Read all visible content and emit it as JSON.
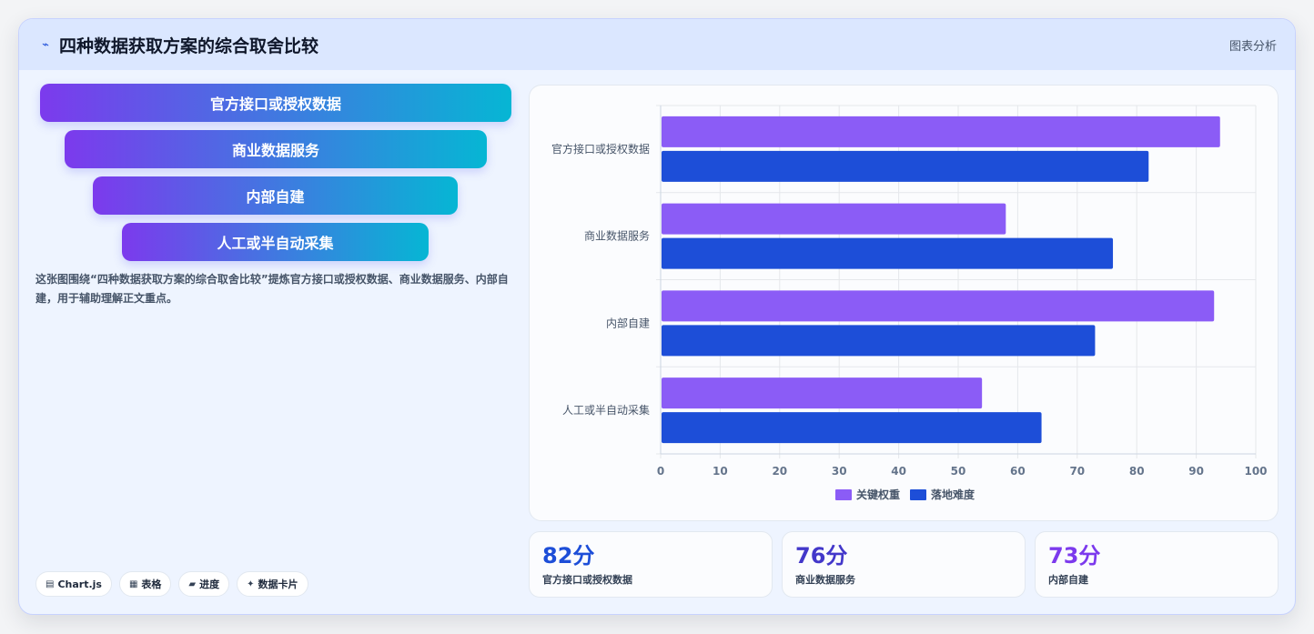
{
  "header": {
    "title": "四种数据获取方案的综合取舍比较",
    "tag": "图表分析",
    "icon": "sparkline-icon"
  },
  "funnel": [
    "官方接口或授权数据",
    "商业数据服务",
    "内部自建",
    "人工或半自动采集"
  ],
  "description": "这张图围绕“四种数据获取方案的综合取舍比较”提炼官方接口或授权数据、商业数据服务、内部自建，用于辅助理解正文重点。",
  "chips": [
    {
      "icon": "chart-icon",
      "label": "Chart.js"
    },
    {
      "icon": "table-icon",
      "label": "表格"
    },
    {
      "icon": "progress-icon",
      "label": "进度"
    },
    {
      "icon": "card-icon",
      "label": "数据卡片"
    }
  ],
  "stats": [
    {
      "value": "82分",
      "label": "官方接口或授权数据",
      "color": "#1d4ed8"
    },
    {
      "value": "76分",
      "label": "商业数据服务",
      "color": "#4338ca"
    },
    {
      "value": "73分",
      "label": "内部自建",
      "color": "#7c3aed"
    }
  ],
  "chart_data": {
    "type": "bar",
    "orientation": "horizontal",
    "categories": [
      "官方接口或授权数据",
      "商业数据服务",
      "内部自建",
      "人工或半自动采集"
    ],
    "series": [
      {
        "name": "关键权重",
        "values": [
          94,
          58,
          93,
          54
        ],
        "color": "#8b5cf6"
      },
      {
        "name": "落地难度",
        "values": [
          82,
          76,
          73,
          64
        ],
        "color": "#1d4ed8"
      }
    ],
    "xlim": [
      0,
      100
    ],
    "xticks": [
      0,
      10,
      20,
      30,
      40,
      50,
      60,
      70,
      80,
      90,
      100
    ],
    "grid": true,
    "legend": "bottom"
  }
}
